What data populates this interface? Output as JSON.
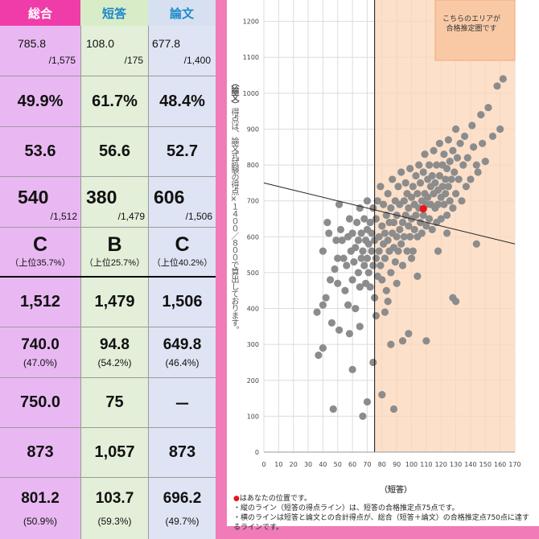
{
  "table": {
    "headers": {
      "total": "総合",
      "short": "短答",
      "essay": "論文"
    },
    "rows": [
      {
        "type": "fraction",
        "cells": [
          {
            "n": "785.8",
            "d": "/1,575"
          },
          {
            "n": "108.0",
            "d": "/175"
          },
          {
            "n": "677.8",
            "d": "/1,400"
          }
        ]
      },
      {
        "type": "pct",
        "cells": [
          "49.9%",
          "61.7%",
          "48.4%"
        ]
      },
      {
        "type": "big",
        "cells": [
          "53.6",
          "56.6",
          "52.7"
        ]
      },
      {
        "type": "rank",
        "cells": [
          {
            "n": "540",
            "d": "/1,512"
          },
          {
            "n": "380",
            "d": "/1,479"
          },
          {
            "n": "606",
            "d": "/1,506"
          }
        ]
      },
      {
        "type": "grade",
        "cells": [
          {
            "g": "C",
            "s": "（上位35.7%）"
          },
          {
            "g": "B",
            "s": "（上位25.7%）"
          },
          {
            "g": "C",
            "s": "（上位40.2%）"
          }
        ]
      },
      {
        "type": "big",
        "cells": [
          "1,512",
          "1,479",
          "1,506"
        ]
      },
      {
        "type": "avg",
        "cells": [
          {
            "v": "740.0",
            "s": "(47.0%)"
          },
          {
            "v": "94.8",
            "s": "(54.2%)"
          },
          {
            "v": "649.8",
            "s": "(46.4%)"
          }
        ]
      },
      {
        "type": "big",
        "cells": [
          "750.0",
          "75",
          "－"
        ]
      },
      {
        "type": "big",
        "cells": [
          "873",
          "1,057",
          "873"
        ]
      },
      {
        "type": "avg",
        "cells": [
          {
            "v": "801.2",
            "s": "(50.9%)"
          },
          {
            "v": "103.7",
            "s": "(59.3%)"
          },
          {
            "v": "696.2",
            "s": "(49.7%)"
          }
        ]
      }
    ]
  },
  "chart_data": {
    "type": "scatter",
    "xlabel": "（短答）",
    "ylabel_head": "（論文）",
    "ylabel_body": "得点は、論文式試験の得点×１４００／８００で算出しております。",
    "xlim": [
      0,
      170
    ],
    "ylim": [
      0,
      1300
    ],
    "xticks": [
      0,
      10,
      20,
      30,
      40,
      50,
      60,
      70,
      80,
      90,
      100,
      110,
      120,
      130,
      140,
      150,
      160,
      170
    ],
    "yticks": [
      0,
      100,
      200,
      300,
      400,
      500,
      600,
      700,
      800,
      900,
      1000,
      1100,
      1200,
      1300
    ],
    "zone_label": [
      "こちらのエリアが",
      "合格推定圏です"
    ],
    "zone": {
      "x_from": 75,
      "colors": {
        "fill": "#fbd5b8",
        "stroke": "#f0a878"
      }
    },
    "vertical_line_x": 75,
    "diagonal_line": {
      "x1": 0,
      "y1": 750,
      "x2": 170,
      "y2": 580
    },
    "you": {
      "x": 108,
      "y": 678,
      "color": "#e8141e"
    },
    "point_color": "#8c8c8c",
    "notes": [
      {
        "mark": "●",
        "text": "はあなたの位置です。"
      },
      {
        "mark": "",
        "text": "・縦のライン（短答の得点ライン）は、短答の合格推定点75点です。"
      },
      {
        "mark": "",
        "text": "・横のラインは短答と論文との合計得点が、総合（短答＋論文）の合格推定点750点に達するラインです。"
      }
    ],
    "points": [
      [
        40,
        410
      ],
      [
        40,
        560
      ],
      [
        42,
        430
      ],
      [
        43,
        640
      ],
      [
        44,
        610
      ],
      [
        45,
        480
      ],
      [
        46,
        360
      ],
      [
        47,
        120
      ],
      [
        48,
        510
      ],
      [
        49,
        590
      ],
      [
        50,
        540
      ],
      [
        50,
        470
      ],
      [
        51,
        690
      ],
      [
        52,
        620
      ],
      [
        53,
        590
      ],
      [
        54,
        540
      ],
      [
        55,
        450
      ],
      [
        56,
        520
      ],
      [
        57,
        600
      ],
      [
        58,
        330
      ],
      [
        58,
        650
      ],
      [
        59,
        560
      ],
      [
        60,
        610
      ],
      [
        60,
        480
      ],
      [
        61,
        530
      ],
      [
        62,
        570
      ],
      [
        62,
        400
      ],
      [
        63,
        640
      ],
      [
        64,
        500
      ],
      [
        64,
        590
      ],
      [
        65,
        460
      ],
      [
        65,
        680
      ],
      [
        66,
        540
      ],
      [
        66,
        610
      ],
      [
        67,
        100
      ],
      [
        67,
        560
      ],
      [
        68,
        520
      ],
      [
        68,
        650
      ],
      [
        69,
        470
      ],
      [
        69,
        590
      ],
      [
        70,
        620
      ],
      [
        70,
        540
      ],
      [
        70,
        700
      ],
      [
        71,
        500
      ],
      [
        71,
        580
      ],
      [
        72,
        640
      ],
      [
        72,
        460
      ],
      [
        73,
        560
      ],
      [
        73,
        610
      ],
      [
        74,
        520
      ],
      [
        74,
        680
      ],
      [
        75,
        430
      ],
      [
        75,
        590
      ],
      [
        76,
        650
      ],
      [
        76,
        540
      ],
      [
        77,
        700
      ],
      [
        77,
        490
      ],
      [
        78,
        600
      ],
      [
        78,
        560
      ],
      [
        79,
        740
      ],
      [
        79,
        520
      ],
      [
        80,
        630
      ],
      [
        80,
        480
      ],
      [
        81,
        580
      ],
      [
        81,
        690
      ],
      [
        82,
        540
      ],
      [
        82,
        610
      ],
      [
        83,
        660
      ],
      [
        83,
        450
      ],
      [
        84,
        590
      ],
      [
        84,
        720
      ],
      [
        85,
        560
      ],
      [
        85,
        640
      ],
      [
        86,
        500
      ],
      [
        86,
        680
      ],
      [
        87,
        610
      ],
      [
        87,
        760
      ],
      [
        88,
        570
      ],
      [
        88,
        640
      ],
      [
        89,
        530
      ],
      [
        89,
        700
      ],
      [
        90,
        660
      ],
      [
        90,
        600
      ],
      [
        91,
        740
      ],
      [
        91,
        560
      ],
      [
        92,
        620
      ],
      [
        92,
        690
      ],
      [
        93,
        580
      ],
      [
        93,
        780
      ],
      [
        94,
        640
      ],
      [
        94,
        520
      ],
      [
        95,
        700
      ],
      [
        95,
        600
      ],
      [
        96,
        660
      ],
      [
        96,
        750
      ],
      [
        97,
        560
      ],
      [
        97,
        720
      ],
      [
        98,
        630
      ],
      [
        98,
        680
      ],
      [
        99,
        790
      ],
      [
        99,
        600
      ],
      [
        100,
        710
      ],
      [
        100,
        650
      ],
      [
        101,
        560
      ],
      [
        101,
        740
      ],
      [
        102,
        690
      ],
      [
        102,
        620
      ],
      [
        103,
        770
      ],
      [
        103,
        660
      ],
      [
        104,
        600
      ],
      [
        104,
        720
      ],
      [
        105,
        680
      ],
      [
        105,
        800
      ],
      [
        106,
        640
      ],
      [
        106,
        750
      ],
      [
        107,
        700
      ],
      [
        107,
        610
      ],
      [
        108,
        780
      ],
      [
        108,
        660
      ],
      [
        109,
        720
      ],
      [
        109,
        830
      ],
      [
        110,
        690
      ],
      [
        110,
        630
      ],
      [
        111,
        760
      ],
      [
        111,
        710
      ],
      [
        112,
        650
      ],
      [
        112,
        800
      ],
      [
        113,
        740
      ],
      [
        113,
        690
      ],
      [
        114,
        620
      ],
      [
        114,
        770
      ],
      [
        115,
        720
      ],
      [
        115,
        840
      ],
      [
        116,
        680
      ],
      [
        116,
        750
      ],
      [
        117,
        800
      ],
      [
        117,
        640
      ],
      [
        118,
        730
      ],
      [
        118,
        690
      ],
      [
        119,
        770
      ],
      [
        119,
        860
      ],
      [
        120,
        710
      ],
      [
        120,
        650
      ],
      [
        121,
        800
      ],
      [
        121,
        740
      ],
      [
        122,
        690
      ],
      [
        122,
        830
      ],
      [
        123,
        760
      ],
      [
        123,
        720
      ],
      [
        124,
        660
      ],
      [
        124,
        790
      ],
      [
        125,
        740
      ],
      [
        125,
        870
      ],
      [
        126,
        700
      ],
      [
        126,
        810
      ],
      [
        127,
        760
      ],
      [
        128,
        680
      ],
      [
        128,
        840
      ],
      [
        129,
        780
      ],
      [
        130,
        720
      ],
      [
        130,
        900
      ],
      [
        131,
        820
      ],
      [
        132,
        760
      ],
      [
        133,
        860
      ],
      [
        134,
        700
      ],
      [
        135,
        800
      ],
      [
        136,
        880
      ],
      [
        137,
        740
      ],
      [
        138,
        820
      ],
      [
        140,
        760
      ],
      [
        141,
        910
      ],
      [
        142,
        850
      ],
      [
        144,
        800
      ],
      [
        145,
        780
      ],
      [
        147,
        940
      ],
      [
        148,
        860
      ],
      [
        150,
        810
      ],
      [
        152,
        960
      ],
      [
        155,
        880
      ],
      [
        158,
        1020
      ],
      [
        160,
        900
      ],
      [
        162,
        1040
      ],
      [
        128,
        430
      ],
      [
        98,
        330
      ],
      [
        94,
        310
      ],
      [
        86,
        300
      ],
      [
        70,
        140
      ],
      [
        80,
        160
      ],
      [
        88,
        120
      ],
      [
        60,
        230
      ],
      [
        51,
        340
      ],
      [
        36,
        390
      ],
      [
        37,
        270
      ],
      [
        40,
        290
      ],
      [
        74,
        250
      ],
      [
        57,
        410
      ],
      [
        65,
        350
      ],
      [
        82,
        390
      ],
      [
        110,
        310
      ],
      [
        130,
        420
      ],
      [
        144,
        580
      ],
      [
        118,
        560
      ],
      [
        100,
        540
      ],
      [
        124,
        610
      ],
      [
        90,
        470
      ],
      [
        104,
        490
      ],
      [
        84,
        420
      ],
      [
        76,
        380
      ]
    ]
  }
}
